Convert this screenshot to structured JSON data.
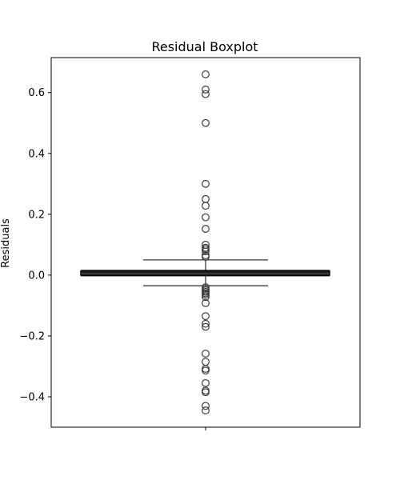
{
  "chart_data": {
    "type": "boxplot",
    "title": "Residual Boxplot",
    "xlabel": "",
    "ylabel": "Residuals",
    "ylim": [
      -0.5,
      0.715
    ],
    "yticks": [
      -0.4,
      -0.2,
      0.0,
      0.2,
      0.4,
      0.6
    ],
    "ytick_labels": [
      "−0.4",
      "−0.2",
      "0.0",
      "0.2",
      "0.4",
      "0.6"
    ],
    "grid": false,
    "box": {
      "q1": -0.002,
      "median": 0.005,
      "q3": 0.015,
      "whisker_low": -0.035,
      "whisker_high": 0.05
    },
    "outliers": [
      0.66,
      0.61,
      0.595,
      0.5,
      0.3,
      0.25,
      0.228,
      0.19,
      0.152,
      0.1,
      0.09,
      0.085,
      0.078,
      0.065,
      0.06,
      -0.04,
      -0.045,
      -0.05,
      -0.055,
      -0.06,
      -0.065,
      -0.072,
      -0.092,
      -0.135,
      -0.16,
      -0.17,
      -0.258,
      -0.285,
      -0.308,
      -0.314,
      -0.355,
      -0.38,
      -0.385,
      -0.43,
      -0.445
    ]
  }
}
